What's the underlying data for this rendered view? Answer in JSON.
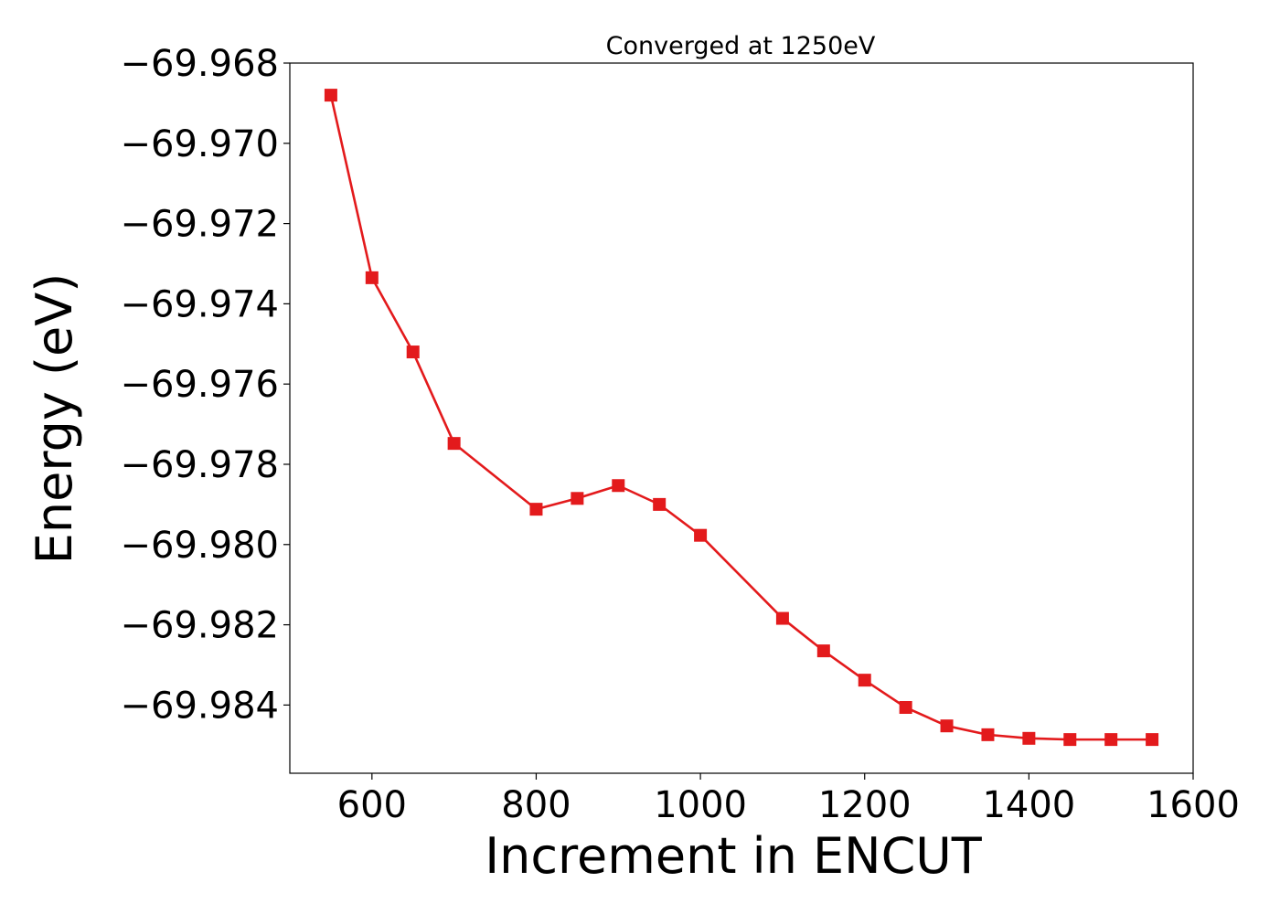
{
  "chart_data": {
    "type": "line",
    "title": "Converged at 1250eV",
    "xlabel": "Increment in ENCUT",
    "ylabel": "Energy (eV)",
    "xlim": [
      500,
      1600
    ],
    "ylim": [
      -69.9857,
      -69.968
    ],
    "xticks": [
      600,
      800,
      1000,
      1200,
      1400,
      1600
    ],
    "xtick_labels": [
      "600",
      "800",
      "1000",
      "1200",
      "1400",
      "1600"
    ],
    "yticks": [
      -69.968,
      -69.97,
      -69.972,
      -69.974,
      -69.976,
      -69.978,
      -69.98,
      -69.982,
      -69.984
    ],
    "ytick_labels": [
      "−69.968",
      "−69.970",
      "−69.972",
      "−69.974",
      "−69.976",
      "−69.978",
      "−69.980",
      "−69.982",
      "−69.984"
    ],
    "grid": false,
    "series": [
      {
        "color": "#e31a1c",
        "marker": "square",
        "x": [
          550,
          600,
          650,
          700,
          800,
          850,
          900,
          950,
          1000,
          1100,
          1150,
          1200,
          1250,
          1300,
          1350,
          1400,
          1450,
          1500,
          1550
        ],
        "y": [
          -69.9688,
          -69.97335,
          -69.9752,
          -69.97748,
          -69.97912,
          -69.97885,
          -69.97853,
          -69.979,
          -69.97977,
          -69.98184,
          -69.98265,
          -69.98338,
          -69.98406,
          -69.98452,
          -69.98474,
          -69.98483,
          -69.98486,
          -69.98486,
          -69.98486
        ]
      }
    ]
  }
}
